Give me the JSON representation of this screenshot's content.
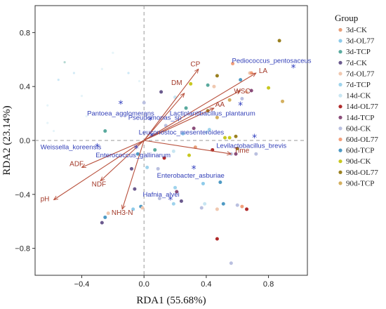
{
  "chart_data": {
    "type": "scatter",
    "xlabel": "RDA1 (55.68%)",
    "ylabel": "RDA2 (23.14%)",
    "xlim": [
      -0.7,
      1.05
    ],
    "ylim": [
      -1.0,
      1.0
    ],
    "xticks": [
      -0.4,
      0.0,
      0.4,
      0.8
    ],
    "yticks": [
      0.8,
      0.4,
      0.0,
      -0.4,
      -0.8
    ],
    "xtick_labels": [
      "−0.4",
      "0.0",
      "0.4",
      "0.8"
    ],
    "ytick_labels": [
      "0.8",
      "0.4",
      "0.0",
      "−0.4",
      "−0.8"
    ],
    "legend": {
      "title": "Group",
      "position": "right",
      "groups": [
        {
          "name": "3d-CK",
          "color": "#e8a07a"
        },
        {
          "name": "3d-OL77",
          "color": "#8ecbea"
        },
        {
          "name": "3d-TCP",
          "color": "#5aaa9e"
        },
        {
          "name": "7d-CK",
          "color": "#6b5a8e"
        },
        {
          "name": "7d-OL77",
          "color": "#f0c8b0"
        },
        {
          "name": "7d-TCP",
          "color": "#9fd3ec"
        },
        {
          "name": "14d-CK",
          "color": "#c8e6f2"
        },
        {
          "name": "14d-OL77",
          "color": "#b02a2a"
        },
        {
          "name": "14d-TCP",
          "color": "#8a4d7a"
        },
        {
          "name": "60d-CK",
          "color": "#bac0e0"
        },
        {
          "name": "60d-OL77",
          "color": "#f2a07c"
        },
        {
          "name": "60d-TCP",
          "color": "#4e9ac4"
        },
        {
          "name": "90d-CK",
          "color": "#c8c820"
        },
        {
          "name": "90d-OL77",
          "color": "#9a8020"
        },
        {
          "name": "90d-TCP",
          "color": "#d4b060"
        }
      ]
    },
    "variables": [
      {
        "name": "CP",
        "x": 0.35,
        "y": 0.53,
        "lx": 0.33,
        "ly": 0.54
      },
      {
        "name": "DM",
        "x": 0.26,
        "y": 0.35,
        "lx": 0.21,
        "ly": 0.4
      },
      {
        "name": "LA",
        "x": 0.72,
        "y": 0.5,
        "lx": 0.72,
        "ly": 0.5
      },
      {
        "name": "AA",
        "x": 0.45,
        "y": 0.24,
        "lx": 0.44,
        "ly": 0.25
      },
      {
        "name": "WSC",
        "x": 0.62,
        "y": 0.37,
        "lx": 0.56,
        "ly": 0.35
      },
      {
        "name": "Time",
        "x": 0.56,
        "y": -0.1,
        "lx": 0.56,
        "ly": -0.09
      },
      {
        "name": "ADF",
        "x": -0.4,
        "y": -0.2,
        "lx": -0.37,
        "ly": -0.19
      },
      {
        "name": "NDF",
        "x": -0.28,
        "y": -0.3,
        "lx": -0.29,
        "ly": -0.29
      },
      {
        "name": "pH",
        "x": -0.58,
        "y": -0.44,
        "lx": -0.59,
        "ly": -0.43
      },
      {
        "name": "NH3-N",
        "x": -0.14,
        "y": -0.51,
        "lx": -0.14,
        "ly": -0.5
      }
    ],
    "species": [
      {
        "name": "Pediococcus_pentosaceus",
        "x": 0.96,
        "y": 0.54,
        "lx": 0.82,
        "ly": 0.59
      },
      {
        "name": "Lactiplantibacillus_plantarum",
        "x": 0.62,
        "y": 0.26,
        "lx": 0.44,
        "ly": 0.2
      },
      {
        "name": "Levilactobacillus_brevis",
        "x": 0.71,
        "y": 0.02,
        "lx": 0.69,
        "ly": -0.04
      },
      {
        "name": "Pantoea_agglomerans",
        "x": -0.15,
        "y": 0.27,
        "lx": -0.15,
        "ly": 0.2
      },
      {
        "name": "Pseudomonas_sp",
        "x": 0.04,
        "y": 0.15,
        "lx": 0.07,
        "ly": 0.17
      },
      {
        "name": "Leuconostoc_mesenteroides",
        "x": 0.05,
        "y": 0.03,
        "lx": 0.24,
        "ly": 0.06
      },
      {
        "name": "Weissella_koreensis",
        "x": -0.3,
        "y": -0.05,
        "lx": -0.47,
        "ly": -0.05
      },
      {
        "name": "Enterococcus_gallinarum",
        "x": -0.05,
        "y": -0.06,
        "lx": -0.07,
        "ly": -0.11
      },
      {
        "name": "Enterobacter_asburiae",
        "x": 0.32,
        "y": -0.21,
        "lx": 0.3,
        "ly": -0.26
      },
      {
        "name": "Hafnia_alvei",
        "x": 0.17,
        "y": -0.44,
        "lx": 0.11,
        "ly": -0.4
      }
    ],
    "points": [
      [
        0.87,
        0.74,
        13
      ],
      [
        0.57,
        0.57,
        10
      ],
      [
        0.68,
        0.5,
        4
      ],
      [
        0.47,
        0.48,
        13
      ],
      [
        0.69,
        0.37,
        8
      ],
      [
        0.8,
        0.39,
        12
      ],
      [
        0.66,
        0.36,
        4
      ],
      [
        0.89,
        0.29,
        14
      ],
      [
        0.45,
        0.4,
        4
      ],
      [
        0.3,
        0.42,
        12
      ],
      [
        0.11,
        0.36,
        3
      ],
      [
        0.2,
        0.32,
        6
      ],
      [
        0.63,
        0.31,
        9
      ],
      [
        0.55,
        0.3,
        14
      ],
      [
        0.27,
        0.24,
        2
      ],
      [
        0.47,
        0.17,
        14
      ],
      [
        0.32,
        0.09,
        8
      ],
      [
        0.14,
        0.11,
        9
      ],
      [
        0.42,
        0.08,
        5
      ],
      [
        0.25,
        0.05,
        1
      ],
      [
        0.4,
        0.06,
        6
      ],
      [
        0.52,
        0.02,
        12
      ],
      [
        0.55,
        0.02,
        12
      ],
      [
        0.59,
        0.03,
        13
      ],
      [
        0.33,
        -0.05,
        0
      ],
      [
        0.44,
        -0.07,
        7
      ],
      [
        0.07,
        -0.07,
        2
      ],
      [
        0.19,
        -0.08,
        6
      ],
      [
        0.29,
        -0.11,
        12
      ],
      [
        0.56,
        -0.1,
        9
      ],
      [
        0.59,
        -0.1,
        8
      ],
      [
        0.72,
        -0.1,
        9
      ],
      [
        0.41,
        0.22,
        13
      ],
      [
        0.13,
        -0.13,
        7
      ],
      [
        0.02,
        -0.2,
        5
      ],
      [
        -0.04,
        -0.1,
        11
      ],
      [
        -0.08,
        -0.21,
        3
      ],
      [
        0.09,
        -0.21,
        9
      ],
      [
        -0.06,
        -0.36,
        3
      ],
      [
        0.2,
        -0.35,
        5
      ],
      [
        0.38,
        -0.32,
        1
      ],
      [
        0.49,
        -0.31,
        11
      ],
      [
        0.1,
        -0.43,
        9
      ],
      [
        0.19,
        -0.47,
        5
      ],
      [
        0.21,
        -0.38,
        8
      ],
      [
        0.24,
        -0.45,
        3
      ],
      [
        0.39,
        -0.47,
        6
      ],
      [
        0.51,
        -0.47,
        11
      ],
      [
        0.37,
        -0.5,
        9
      ],
      [
        0.47,
        -0.51,
        4
      ],
      [
        0.6,
        -0.48,
        9
      ],
      [
        0.63,
        -0.49,
        10
      ],
      [
        0.66,
        -0.51,
        7
      ],
      [
        -0.02,
        -0.49,
        11
      ],
      [
        -0.01,
        -0.5,
        4
      ],
      [
        -0.07,
        -0.51,
        1
      ],
      [
        -0.23,
        -0.54,
        4
      ],
      [
        -0.25,
        -0.57,
        11
      ],
      [
        -0.27,
        -0.61,
        3
      ],
      [
        0.47,
        -0.73,
        7
      ],
      [
        0.56,
        -0.91,
        9
      ],
      [
        -0.25,
        0.07,
        2
      ],
      [
        0.0,
        0.28,
        9
      ],
      [
        0.41,
        0.41,
        2
      ],
      [
        0.69,
        0.5,
        10
      ],
      [
        0.62,
        0.45,
        11
      ],
      [
        0.6,
        -0.06,
        13
      ]
    ],
    "faint_points": [
      [
        -0.62,
        0.13,
        6
      ],
      [
        -0.58,
        0.07,
        6
      ],
      [
        -0.55,
        0.45,
        1
      ],
      [
        -0.51,
        0.58,
        2
      ],
      [
        -0.45,
        0.5,
        5
      ],
      [
        -0.4,
        0.33,
        6
      ],
      [
        -0.37,
        0.18,
        6
      ],
      [
        -0.27,
        0.53,
        6
      ],
      [
        -0.2,
        0.65,
        6
      ],
      [
        -0.1,
        0.5,
        1
      ],
      [
        -0.03,
        0.44,
        6
      ],
      [
        -0.62,
        0.26,
        6
      ]
    ]
  }
}
